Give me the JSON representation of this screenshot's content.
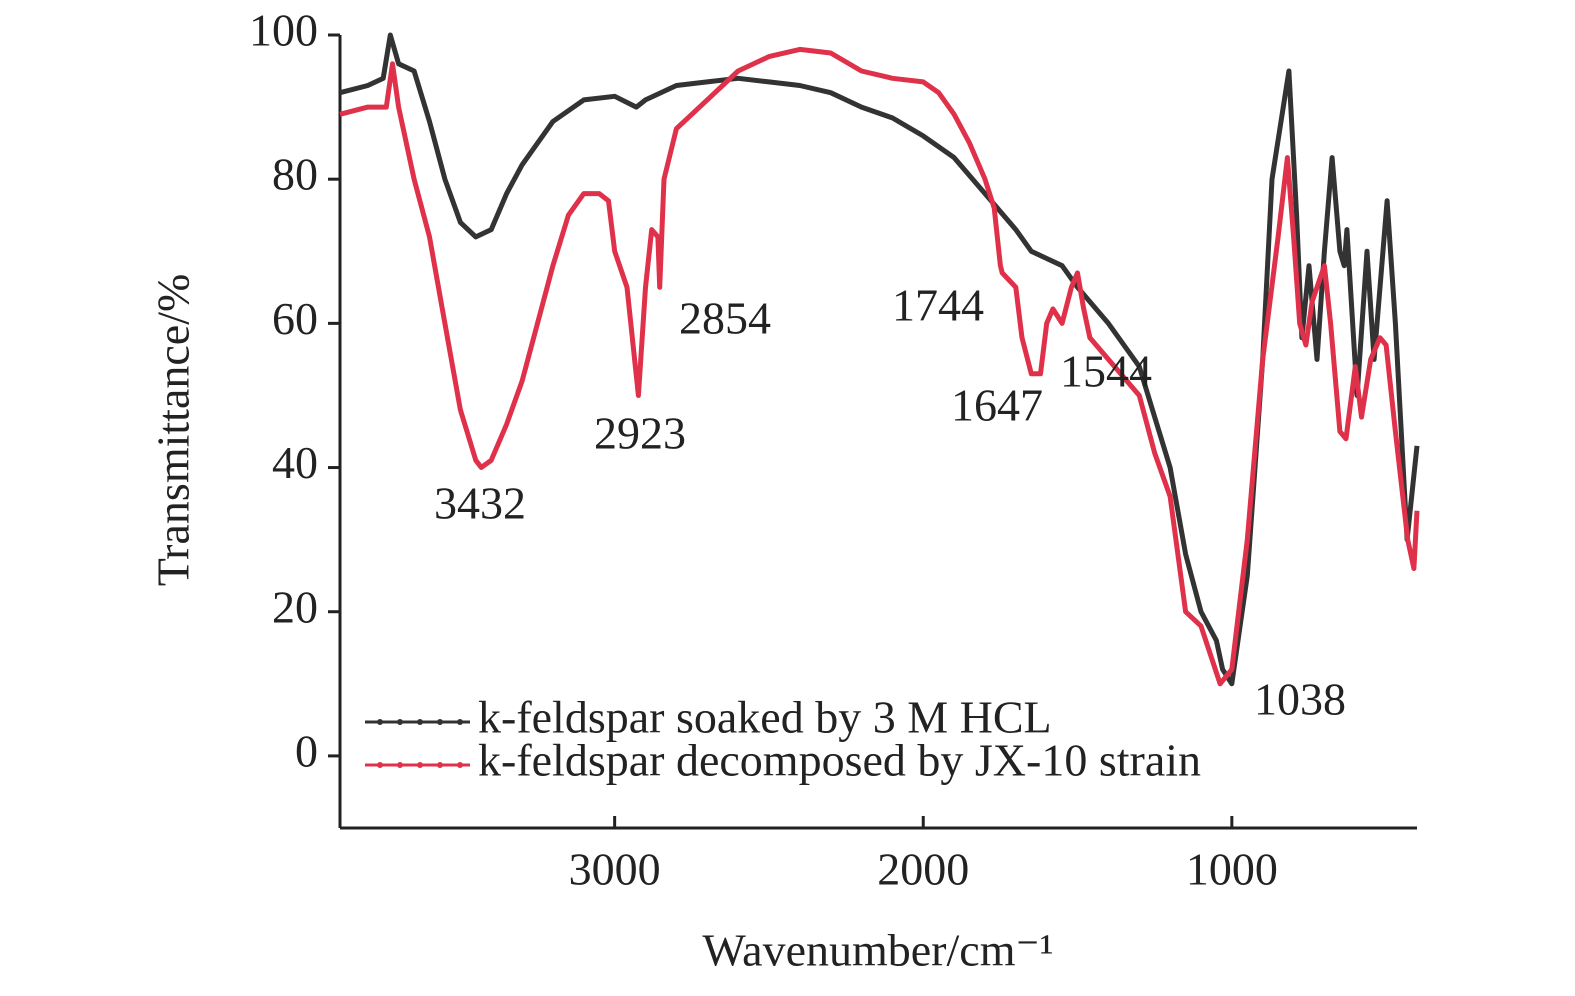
{
  "chart_data": {
    "type": "line",
    "xlabel": "Wavenumber/cm⁻¹",
    "ylabel": "Transmittance/%",
    "xlim": [
      3890,
      400
    ],
    "xticks": [
      3000,
      2000,
      1000
    ],
    "ylim": [
      -10,
      100
    ],
    "yticks": [
      0,
      20,
      40,
      60,
      80,
      100
    ],
    "legend": "lower left",
    "series": [
      {
        "name": "k-feldspar soaked by 3 M HCL",
        "color": "#333333",
        "x": [
          3890,
          3800,
          3750,
          3727,
          3700,
          3650,
          3600,
          3550,
          3500,
          3450,
          3400,
          3350,
          3300,
          3200,
          3100,
          3000,
          2930,
          2900,
          2800,
          2700,
          2600,
          2500,
          2400,
          2300,
          2200,
          2100,
          2000,
          1900,
          1800,
          1700,
          1650,
          1600,
          1550,
          1500,
          1400,
          1300,
          1250,
          1200,
          1150,
          1100,
          1050,
          1030,
          1000,
          950,
          900,
          870,
          815,
          790,
          773,
          750,
          724,
          700,
          675,
          650,
          636,
          627,
          594,
          562,
          539,
          497,
          470,
          432,
          400
        ],
        "values": [
          92,
          93,
          94,
          100,
          96,
          95,
          88,
          80,
          74,
          72,
          73,
          78,
          82,
          88,
          91,
          91.5,
          90,
          91,
          93,
          93.5,
          94,
          93.5,
          93,
          92,
          90,
          88.5,
          86,
          83,
          78,
          73,
          70,
          69,
          68,
          65,
          60,
          54,
          47,
          40,
          28,
          20,
          16,
          12,
          10,
          25,
          55,
          80,
          95,
          75,
          58,
          68,
          55,
          70,
          83,
          70,
          68,
          73,
          50,
          70,
          55,
          77,
          60,
          30,
          43
        ]
      },
      {
        "name": "k-feldspar decomposed by JX-10 strain",
        "color": "#e0314b",
        "x": [
          3890,
          3800,
          3740,
          3720,
          3700,
          3650,
          3600,
          3550,
          3500,
          3450,
          3432,
          3400,
          3350,
          3300,
          3250,
          3200,
          3150,
          3100,
          3050,
          3020,
          3000,
          2960,
          2923,
          2900,
          2880,
          2860,
          2854,
          2840,
          2800,
          2700,
          2600,
          2500,
          2400,
          2300,
          2200,
          2100,
          2000,
          1950,
          1900,
          1850,
          1800,
          1770,
          1750,
          1744,
          1700,
          1680,
          1650,
          1620,
          1600,
          1580,
          1550,
          1520,
          1500,
          1480,
          1460,
          1400,
          1300,
          1250,
          1200,
          1150,
          1100,
          1038,
          1000,
          950,
          900,
          850,
          820,
          800,
          780,
          760,
          740,
          700,
          680,
          650,
          630,
          600,
          580,
          550,
          520,
          500,
          470,
          430,
          410,
          400
        ],
        "values": [
          89,
          90,
          90,
          96,
          90,
          80,
          72,
          60,
          48,
          41,
          40,
          41,
          46,
          52,
          60,
          68,
          75,
          78,
          78,
          77,
          70,
          65,
          50,
          65,
          73,
          72,
          65,
          80,
          87,
          91,
          95,
          97,
          98,
          97.5,
          95,
          94,
          93.5,
          92,
          89,
          85,
          80,
          76,
          68,
          67,
          65,
          58,
          53,
          53,
          60,
          62,
          60,
          65,
          67,
          62,
          58,
          55,
          50,
          42,
          36,
          20,
          18,
          10,
          12,
          30,
          55,
          72,
          83,
          72,
          60,
          57,
          63,
          68,
          60,
          45,
          44,
          54,
          47,
          55,
          58,
          57,
          45,
          30,
          26,
          34
        ]
      }
    ],
    "annotations": [
      "3432",
      "2923",
      "2854",
      "1744",
      "1647",
      "1544",
      "1038"
    ]
  }
}
